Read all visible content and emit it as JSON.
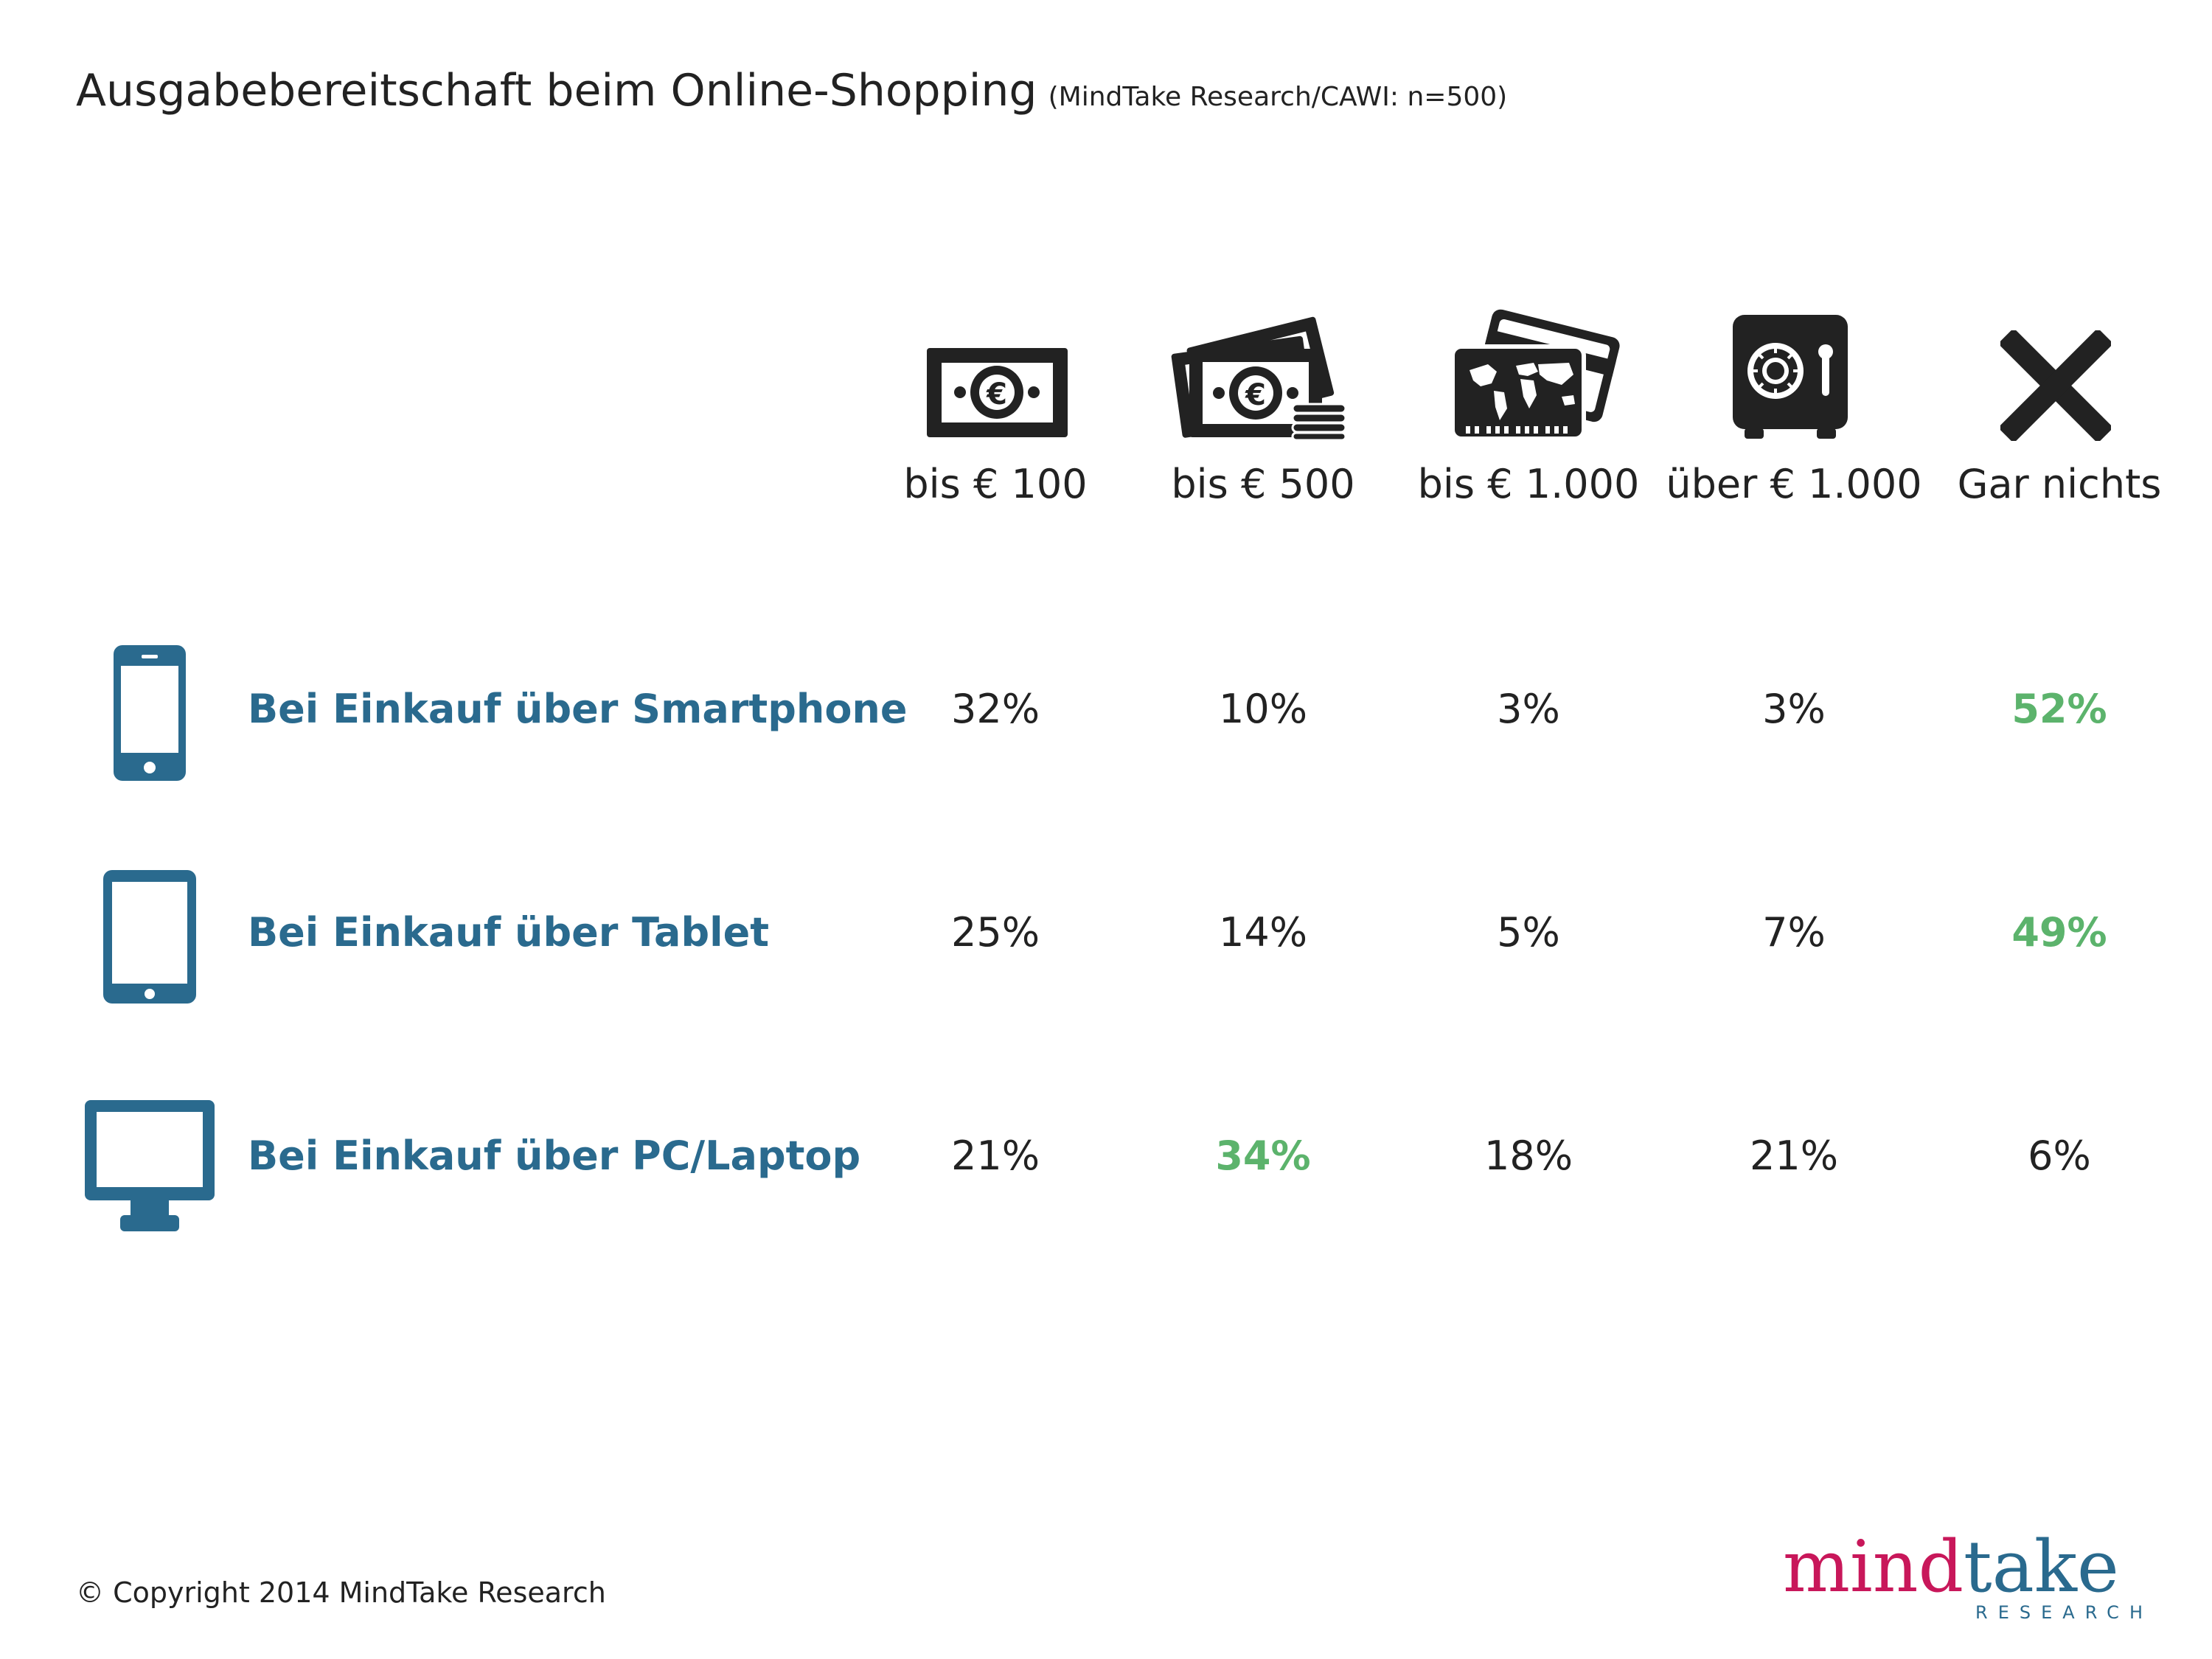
{
  "title": "Ausgabebereitschaft beim Online-Shopping",
  "subtitle": "(MindTake Research/CAWI: n=500)",
  "columns": [
    {
      "label": "bis € 100",
      "icon": "banknote-icon"
    },
    {
      "label": "bis € 500",
      "icon": "banknotes-stack-icon"
    },
    {
      "label": "bis € 1.000",
      "icon": "credit-cards-icon"
    },
    {
      "label": "über € 1.000",
      "icon": "safe-icon"
    },
    {
      "label": "Gar nichts",
      "icon": "x-icon"
    }
  ],
  "rows": [
    {
      "label": "Bei Einkauf über Smartphone",
      "icon": "smartphone-icon",
      "values": [
        "32%",
        "10%",
        "3%",
        "3%",
        "52%"
      ],
      "highlight": 4
    },
    {
      "label": "Bei Einkauf über Tablet",
      "icon": "tablet-icon",
      "values": [
        "25%",
        "14%",
        "5%",
        "7%",
        "49%"
      ],
      "highlight": 4
    },
    {
      "label": "Bei Einkauf über PC/Laptop",
      "icon": "monitor-icon",
      "values": [
        "21%",
        "34%",
        "18%",
        "21%",
        "6%"
      ],
      "highlight": 1
    }
  ],
  "colors": {
    "row_label": "#2a6a8e",
    "highlight": "#5cb36c",
    "text": "#222222",
    "logo_mind": "#c8175a",
    "logo_take": "#2a6a8e"
  },
  "chart_data": {
    "type": "table",
    "title": "Ausgabebereitschaft beim Online-Shopping",
    "subtitle": "(MindTake Research/CAWI: n=500)",
    "categories": [
      "bis € 100",
      "bis € 500",
      "bis € 1.000",
      "über € 1.000",
      "Gar nichts"
    ],
    "series": [
      {
        "name": "Bei Einkauf über Smartphone",
        "values": [
          32,
          10,
          3,
          3,
          52
        ]
      },
      {
        "name": "Bei Einkauf über Tablet",
        "values": [
          25,
          14,
          5,
          7,
          49
        ]
      },
      {
        "name": "Bei Einkauf über PC/Laptop",
        "values": [
          21,
          34,
          18,
          21,
          6
        ]
      }
    ],
    "unit": "%"
  },
  "footer": {
    "copyright": "© Copyright 2014 MindTake Research",
    "logo_mind": "mind",
    "logo_take": "take",
    "logo_sub": "RESEARCH"
  }
}
